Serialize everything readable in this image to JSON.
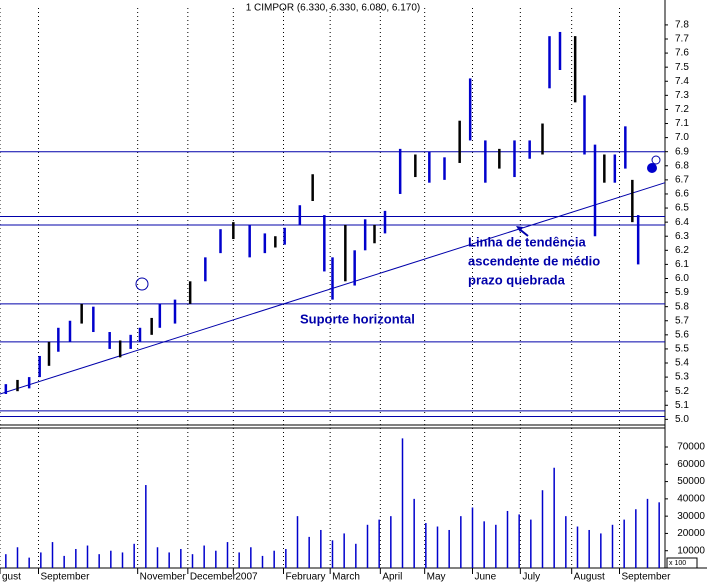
{
  "chart_data": [
    {
      "type": "hilo",
      "title": "1 CIMPOR (6.330, 6.330, 6.080, 6.170)",
      "color": "#0000cc",
      "line_color": "#0000aa",
      "grid": true,
      "x": [
        0.5,
        1.5,
        2.5,
        3.4,
        4.2,
        5,
        6,
        7,
        8,
        9.4,
        10.3,
        11.2,
        12,
        13,
        13.7,
        15,
        16.3,
        17.6,
        18.9,
        20,
        21.4,
        22.7,
        23.6,
        24.4,
        25.7,
        26.8,
        27.8,
        28.5,
        29.6,
        30.4,
        31.3,
        32.1,
        33,
        34.3,
        35.6,
        36.8,
        38.1,
        39.4,
        40.3,
        41.6,
        42.8,
        44.1,
        45.4,
        46.5,
        47.1,
        48,
        49.3,
        50.1,
        51,
        51.8,
        52.7,
        53.6,
        54.2,
        54.7
      ],
      "high": [
        5.25,
        5.28,
        5.3,
        5.45,
        5.55,
        5.65,
        5.7,
        5.82,
        5.8,
        5.62,
        5.56,
        5.6,
        5.65,
        5.72,
        5.82,
        5.85,
        5.98,
        6.15,
        6.35,
        6.4,
        6.38,
        6.32,
        6.3,
        6.36,
        6.52,
        6.74,
        6.45,
        6.15,
        6.38,
        6.2,
        6.42,
        6.38,
        6.48,
        6.92,
        6.88,
        6.9,
        6.86,
        7.12,
        7.42,
        6.98,
        6.92,
        6.98,
        6.98,
        7.1,
        7.72,
        7.75,
        7.72,
        7.3,
        6.95,
        6.88,
        6.88,
        7.08,
        6.7,
        6.45
      ],
      "low": [
        5.18,
        5.2,
        5.22,
        5.3,
        5.38,
        5.48,
        5.55,
        5.68,
        5.62,
        5.5,
        5.44,
        5.5,
        5.55,
        5.6,
        5.65,
        5.68,
        5.82,
        5.98,
        6.18,
        6.28,
        6.15,
        6.18,
        6.22,
        6.24,
        6.38,
        6.55,
        6.05,
        5.85,
        5.98,
        5.95,
        6.2,
        6.25,
        6.32,
        6.6,
        6.72,
        6.68,
        6.7,
        6.82,
        6.98,
        6.68,
        6.78,
        6.72,
        6.85,
        6.88,
        7.35,
        7.48,
        7.25,
        6.88,
        6.3,
        6.68,
        6.68,
        6.78,
        6.4,
        6.1
      ],
      "xlim": [
        0,
        57
      ],
      "ylim": [
        4.96,
        7.92
      ],
      "xticks": [
        {
          "value": 0,
          "label": "gust"
        },
        {
          "value": 3.3,
          "label": "September"
        },
        {
          "value": 11.8,
          "label": "November"
        },
        {
          "value": 16.1,
          "label": "December"
        },
        {
          "value": 20,
          "label": "2007"
        },
        {
          "value": 24.3,
          "label": "February"
        },
        {
          "value": 28.3,
          "label": "March"
        },
        {
          "value": 32.6,
          "label": "April"
        },
        {
          "value": 36.4,
          "label": "May"
        },
        {
          "value": 40.5,
          "label": "June"
        },
        {
          "value": 44.6,
          "label": "July"
        },
        {
          "value": 49,
          "label": "August"
        },
        {
          "value": 53.1,
          "label": "September"
        }
      ],
      "yticks": [
        {
          "value": 5.0,
          "label": "5.0"
        },
        5.1,
        5.2,
        5.3,
        5.4,
        5.5,
        5.6,
        5.7,
        5.8,
        5.9,
        {
          "value": 6.0,
          "label": "6.0"
        },
        6.1,
        6.2,
        6.3,
        6.4,
        6.5,
        6.6,
        6.7,
        6.8,
        6.9,
        {
          "value": 7.0,
          "label": "7.0"
        },
        7.1,
        7.2,
        7.3,
        7.4,
        7.5,
        7.6,
        7.7,
        7.8
      ],
      "hlines": [
        6.9,
        6.44,
        6.38,
        5.82,
        5.55,
        5.06,
        5.02
      ],
      "trendline": {
        "x": [
          0,
          57
        ],
        "y": [
          5.18,
          6.68
        ]
      },
      "annotations": [
        "Suporte horizontal",
        "Linha de tendência",
        "ascendente de médio",
        "prazo quebrada"
      ]
    },
    {
      "type": "bar",
      "color": "#0000cc",
      "unit_label": "x 100",
      "x": [
        0.5,
        1.5,
        2.5,
        3.5,
        4.5,
        5.5,
        6.5,
        7.5,
        8.5,
        9.5,
        10.5,
        11.5,
        12.5,
        13.5,
        14.5,
        15.5,
        16.5,
        17.5,
        18.5,
        19.5,
        20.5,
        21.5,
        22.5,
        23.5,
        24.5,
        25.5,
        26.5,
        27.5,
        28.5,
        29.5,
        30.5,
        31.5,
        32.5,
        33.5,
        34.5,
        35.5,
        36.5,
        37.5,
        38.5,
        39.5,
        40.5,
        41.5,
        42.5,
        43.5,
        44.5,
        45.5,
        46.5,
        47.5,
        48.5,
        49.5,
        50.5,
        51.5,
        52.5,
        53.5,
        54.5,
        55.5,
        56.5
      ],
      "values": [
        8000,
        12000,
        6000,
        9000,
        15000,
        7000,
        11000,
        13000,
        8000,
        10000,
        9000,
        14000,
        48000,
        12000,
        9000,
        11000,
        8000,
        13000,
        10000,
        15000,
        9000,
        12000,
        7000,
        10000,
        11000,
        30000,
        18000,
        22000,
        16000,
        20000,
        14000,
        25000,
        28000,
        30000,
        75000,
        40000,
        26000,
        24000,
        22000,
        30000,
        35000,
        27000,
        25000,
        33000,
        31000,
        28000,
        45000,
        58000,
        30000,
        24000,
        22000,
        20000,
        25000,
        28000,
        34000,
        40000,
        38000
      ],
      "xlim": [
        0,
        57
      ],
      "ylim": [
        0,
        81000
      ],
      "yticks": [
        10000,
        20000,
        30000,
        40000,
        50000,
        60000,
        70000
      ]
    }
  ]
}
